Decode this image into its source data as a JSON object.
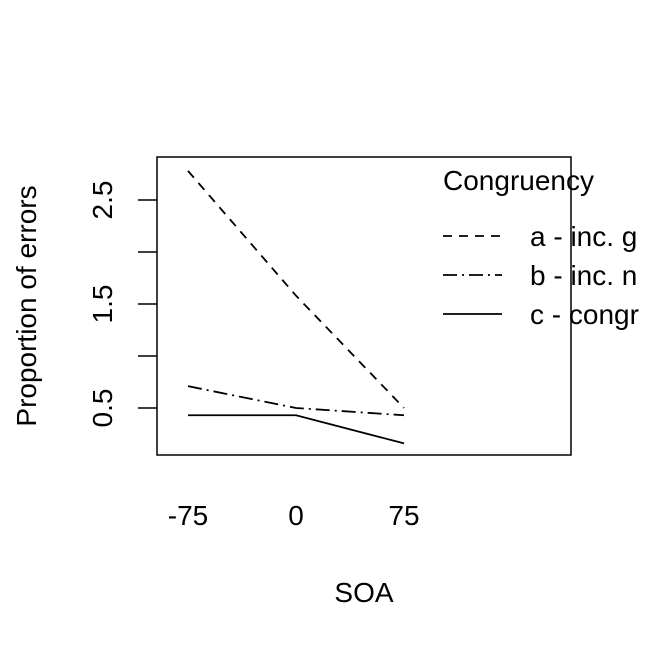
{
  "chart_data": {
    "type": "line",
    "x": [
      "-75",
      "0",
      "75"
    ],
    "xlabel": "SOA",
    "ylabel": "Proportion of errors",
    "ylim": [
      0.0,
      2.9
    ],
    "yticks": [
      0.5,
      1.0,
      1.5,
      2.0,
      2.5
    ],
    "ytick_labels": [
      "0.5",
      "",
      "1.5",
      "",
      "2.5"
    ],
    "legend": {
      "title": "Congruency",
      "placement": "top-right, clipped at plot edge"
    },
    "series": [
      {
        "name": "a - inc. g",
        "linestyle": "dashed",
        "values": [
          2.78,
          1.58,
          0.5
        ]
      },
      {
        "name": "b - inc. n",
        "linestyle": "dotdash",
        "values": [
          0.71,
          0.5,
          0.43
        ]
      },
      {
        "name": "c - congr",
        "linestyle": "solid",
        "values": [
          0.43,
          0.43,
          0.16
        ]
      }
    ],
    "line_color": "#000000",
    "grid": false
  }
}
